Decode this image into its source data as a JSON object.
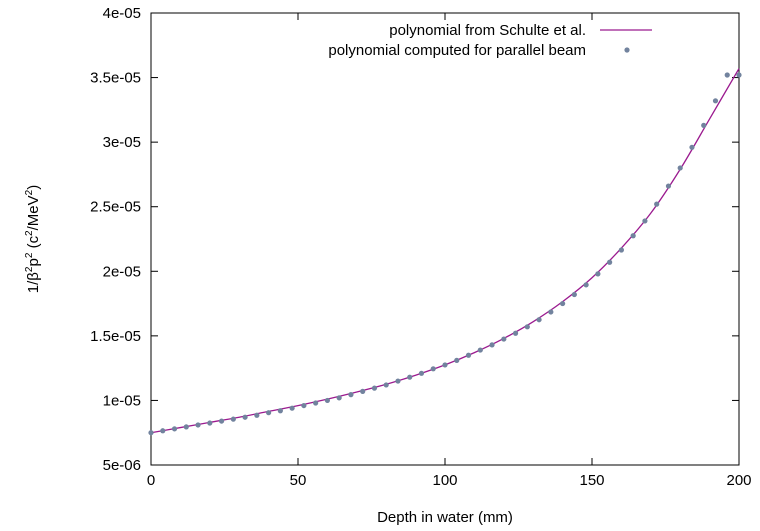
{
  "chart_data": {
    "type": "line",
    "xlabel": "Depth in water (mm)",
    "ylabel": {
      "parts": [
        "1/β",
        "2",
        "p",
        "2",
        " (c",
        "2",
        "/MeV",
        "2",
        ")"
      ],
      "text": "1/β2p2 (c2/MeV2)"
    },
    "xlim": [
      0,
      200
    ],
    "ylim": [
      5e-06,
      4e-05
    ],
    "x_ticks": [
      0,
      50,
      100,
      150,
      200
    ],
    "x_tick_labels": [
      "0",
      "50",
      "100",
      "150",
      "200"
    ],
    "y_ticks": [
      5e-06,
      1e-05,
      1.5e-05,
      2e-05,
      2.5e-05,
      3e-05,
      3.5e-05,
      4e-05
    ],
    "y_tick_labels": [
      "5e-06",
      "1e-05",
      "1.5e-05",
      "2e-05",
      "2.5e-05",
      "3e-05",
      "3.5e-05",
      "4e-05"
    ],
    "grid": false,
    "legend_position": "top-right",
    "series": [
      {
        "name": "polynomial from Schulte et al.",
        "style": "line",
        "color": "#9b1a8f",
        "x": [
          0,
          10,
          20,
          30,
          40,
          50,
          60,
          70,
          80,
          90,
          100,
          110,
          120,
          130,
          140,
          150,
          160,
          170,
          180,
          190,
          200
        ],
        "y": [
          7.5e-06,
          7.9e-06,
          8.3e-06,
          8.7e-06,
          9.15e-06,
          9.6e-06,
          1.01e-05,
          1.065e-05,
          1.125e-05,
          1.195e-05,
          1.275e-05,
          1.37e-05,
          1.48e-05,
          1.61e-05,
          1.765e-05,
          1.95e-05,
          2.18e-05,
          2.45e-05,
          2.79e-05,
          3.18e-05,
          3.57e-05
        ]
      },
      {
        "name": "polynomial computed for parallel beam",
        "style": "points",
        "color": "#72839e",
        "x": [
          0,
          4,
          8,
          12,
          16,
          20,
          24,
          28,
          32,
          36,
          40,
          44,
          48,
          52,
          56,
          60,
          64,
          68,
          72,
          76,
          80,
          84,
          88,
          92,
          96,
          100,
          104,
          108,
          112,
          116,
          120,
          124,
          128,
          132,
          136,
          140,
          144,
          148,
          152,
          156,
          160,
          164,
          168,
          172,
          176,
          180,
          184,
          188,
          192,
          196,
          200
        ],
        "y": [
          7.5e-06,
          7.65e-06,
          7.8e-06,
          7.95e-06,
          8.1e-06,
          8.25e-06,
          8.4e-06,
          8.55e-06,
          8.7e-06,
          8.85e-06,
          9.05e-06,
          9.2e-06,
          9.4e-06,
          9.6e-06,
          9.8e-06,
          1e-05,
          1.02e-05,
          1.045e-05,
          1.07e-05,
          1.095e-05,
          1.12e-05,
          1.15e-05,
          1.18e-05,
          1.21e-05,
          1.245e-05,
          1.275e-05,
          1.31e-05,
          1.35e-05,
          1.39e-05,
          1.43e-05,
          1.475e-05,
          1.52e-05,
          1.57e-05,
          1.625e-05,
          1.685e-05,
          1.75e-05,
          1.82e-05,
          1.895e-05,
          1.98e-05,
          2.07e-05,
          2.165e-05,
          2.275e-05,
          2.39e-05,
          2.52e-05,
          2.66e-05,
          2.8e-05,
          2.96e-05,
          3.13e-05,
          3.32e-05,
          3.52e-05,
          3.52e-05
        ]
      }
    ]
  }
}
